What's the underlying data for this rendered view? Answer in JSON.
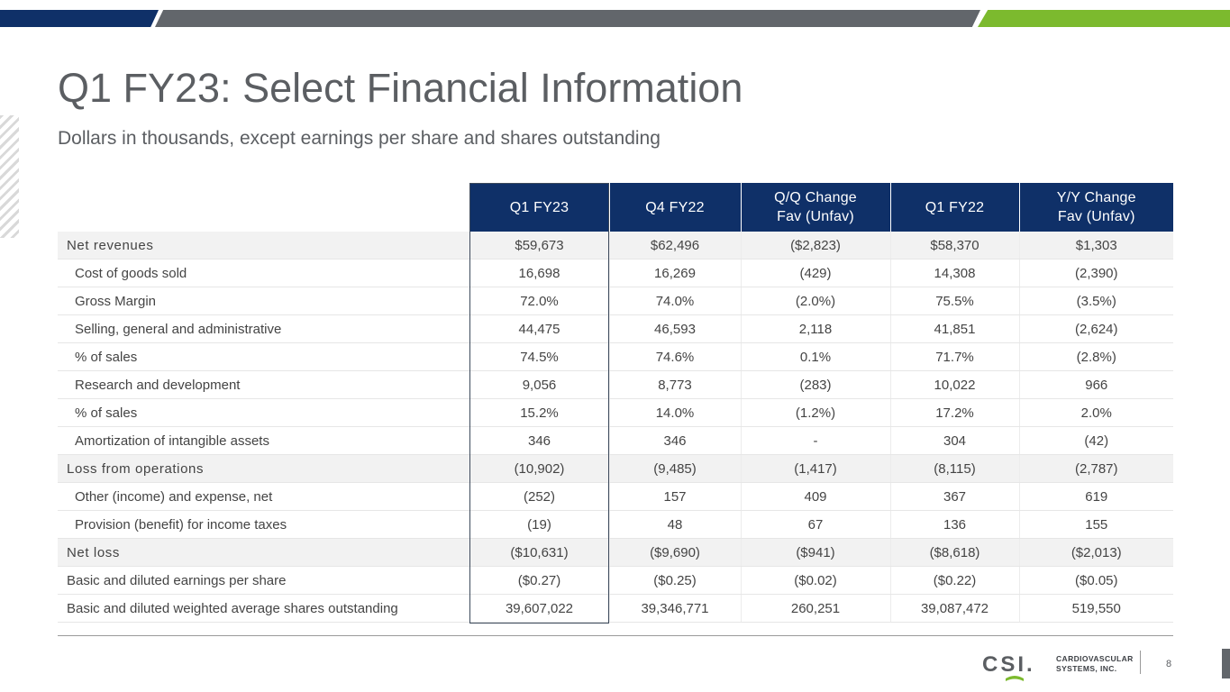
{
  "header": {
    "title": "Q1 FY23: Select Financial Information",
    "subtitle": "Dollars in thousands, except earnings per share and shares outstanding"
  },
  "table": {
    "columns": [
      {
        "line1": "Q1 FY23",
        "line2": ""
      },
      {
        "line1": "Q4 FY22",
        "line2": ""
      },
      {
        "line1": "Q/Q Change",
        "line2": "Fav (Unfav)"
      },
      {
        "line1": "Q1 FY22",
        "line2": ""
      },
      {
        "line1": "Y/Y Change",
        "line2": "Fav (Unfav)"
      }
    ],
    "rows": [
      {
        "label": "Net revenues",
        "values": [
          "$59,673",
          "$62,496",
          "($2,823)",
          "$58,370",
          "$1,303"
        ]
      },
      {
        "label": "Cost of goods sold",
        "values": [
          "16,698",
          "16,269",
          "(429)",
          "14,308",
          "(2,390)"
        ]
      },
      {
        "label": "Gross Margin",
        "values": [
          "72.0%",
          "74.0%",
          "(2.0%)",
          "75.5%",
          "(3.5%)"
        ]
      },
      {
        "label": "Selling, general and administrative",
        "values": [
          "44,475",
          "46,593",
          "2,118",
          "41,851",
          "(2,624)"
        ]
      },
      {
        "label": "% of sales",
        "values": [
          "74.5%",
          "74.6%",
          "0.1%",
          "71.7%",
          "(2.8%)"
        ]
      },
      {
        "label": "Research and development",
        "values": [
          "9,056",
          "8,773",
          "(283)",
          "10,022",
          "966"
        ]
      },
      {
        "label": "% of sales",
        "values": [
          "15.2%",
          "14.0%",
          "(1.2%)",
          "17.2%",
          "2.0%"
        ]
      },
      {
        "label": "Amortization of intangible assets",
        "values": [
          "346",
          "346",
          "-",
          "304",
          "(42)"
        ]
      },
      {
        "label": "Loss from operations",
        "values": [
          "(10,902)",
          "(9,485)",
          "(1,417)",
          "(8,115)",
          "(2,787)"
        ]
      },
      {
        "label": "Other (income) and expense, net",
        "values": [
          "(252)",
          "157",
          "409",
          "367",
          "619"
        ]
      },
      {
        "label": "Provision (benefit) for income taxes",
        "values": [
          "(19)",
          "48",
          "67",
          "136",
          "155"
        ]
      },
      {
        "label": "Net loss",
        "values": [
          "($10,631)",
          "($9,690)",
          "($941)",
          "($8,618)",
          "($2,013)"
        ]
      },
      {
        "label": "Basic and diluted earnings per share",
        "values": [
          "($0.27)",
          "($0.25)",
          "($0.02)",
          "($0.22)",
          "($0.05)"
        ]
      },
      {
        "label": "Basic and diluted weighted average shares outstanding",
        "values": [
          "39,607,022",
          "39,346,771",
          "260,251",
          "39,087,472",
          "519,550"
        ]
      }
    ]
  },
  "footer": {
    "logo_mark": "CSI.",
    "logo_line1": "CARDIOVASCULAR",
    "logo_line2": "SYSTEMS, INC.",
    "page_number": "8"
  },
  "colors": {
    "navy": "#0f3068",
    "gray": "#62666b",
    "green": "#7cba2e"
  }
}
